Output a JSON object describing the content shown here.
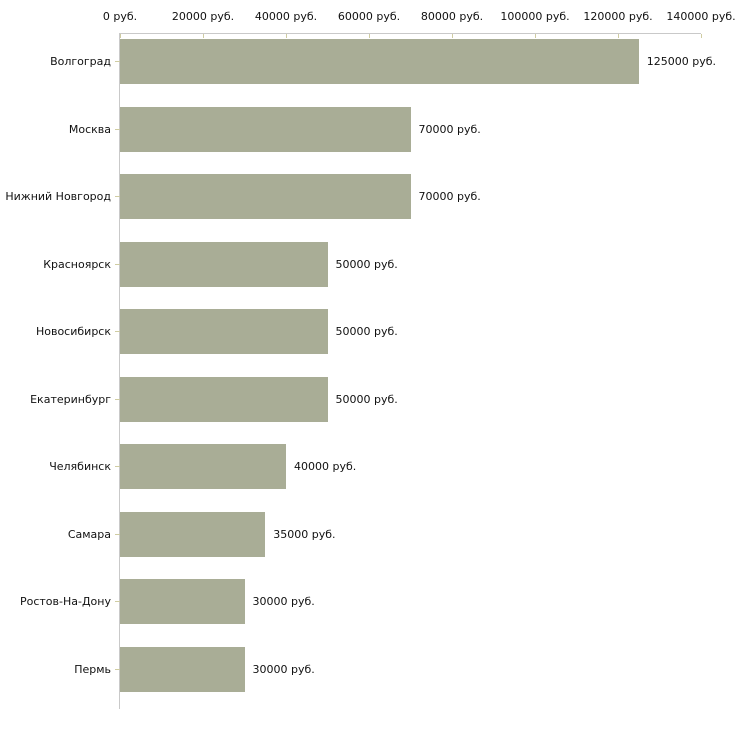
{
  "chart_data": {
    "type": "bar",
    "orientation": "horizontal",
    "unit": "руб.",
    "categories": [
      "Волгоград",
      "Москва",
      "Нижний Новгород",
      "Красноярск",
      "Новосибирск",
      "Екатеринбург",
      "Челябинск",
      "Самара",
      "Ростов-На-Дону",
      "Пермь"
    ],
    "values": [
      125000,
      70000,
      70000,
      50000,
      50000,
      50000,
      40000,
      35000,
      30000,
      30000
    ],
    "bar_labels": [
      "125000 руб.",
      "70000 руб.",
      "70000 руб.",
      "50000 руб.",
      "50000 руб.",
      "50000 руб.",
      "40000 руб.",
      "35000 руб.",
      "30000 руб.",
      "30000 руб."
    ],
    "x_ticks": [
      0,
      20000,
      40000,
      60000,
      80000,
      100000,
      120000,
      140000
    ],
    "x_tick_labels": [
      "0 руб.",
      "20000 руб.",
      "40000 руб.",
      "60000 руб.",
      "80000 руб.",
      "100000 руб.",
      "120000 руб.",
      "140000 руб."
    ],
    "xlim": [
      0,
      140000
    ],
    "axis_position": "top",
    "grid": false,
    "legend": false,
    "colors": {
      "bar": "#a9ad96",
      "axis_line": "#c9c9c9",
      "tick": "#cfcca2",
      "text": "#111111",
      "background": "#ffffff"
    }
  }
}
